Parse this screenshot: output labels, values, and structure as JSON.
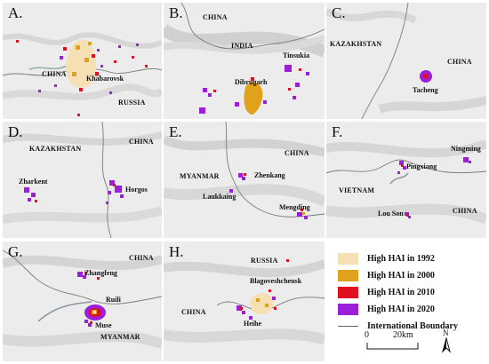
{
  "panels": {
    "A": {
      "label": "A.",
      "countries": [
        "CHINA",
        "RUSSIA"
      ],
      "cities": [
        "Khabarovsk"
      ]
    },
    "B": {
      "label": "B.",
      "countries": [
        "CHINA",
        "INDIA"
      ],
      "cities": [
        "Tinsukia",
        "Dibrugarh"
      ]
    },
    "C": {
      "label": "C.",
      "countries": [
        "KAZAKHSTAN",
        "CHINA"
      ],
      "cities": [
        "Tacheng"
      ]
    },
    "D": {
      "label": "D.",
      "countries": [
        "KAZAKHSTAN",
        "CHINA"
      ],
      "cities": [
        "Zharkent",
        "Horgos"
      ]
    },
    "E": {
      "label": "E.",
      "countries": [
        "CHINA",
        "MYANMAR"
      ],
      "cities": [
        "Zhenkang",
        "Laukkaing",
        "Mengding"
      ]
    },
    "F": {
      "label": "F.",
      "countries": [
        "VIETNAM",
        "CHINA"
      ],
      "cities": [
        "Ningming",
        "Pingxiang",
        "Lou Son"
      ]
    },
    "G": {
      "label": "G.",
      "countries": [
        "CHINA",
        "MYANMAR"
      ],
      "cities": [
        "Zhangfeng",
        "Ruili",
        "Muse"
      ]
    },
    "H": {
      "label": "H.",
      "countries": [
        "RUSSIA",
        "CHINA"
      ],
      "cities": [
        "Blagoveshchensk",
        "Heihe"
      ]
    }
  },
  "legend": {
    "items": [
      {
        "label": "High HAI in 1992",
        "color": "#f7dfb4"
      },
      {
        "label": "High HAI in 2000",
        "color": "#e0a21a"
      },
      {
        "label": "High HAI in 2010",
        "color": "#e01020"
      },
      {
        "label": "High HAI in 2020",
        "color": "#9b1fd6"
      }
    ],
    "boundary_label": "International Boundary",
    "scale_zero": "0",
    "scale_distance": "20km",
    "north": "N"
  }
}
